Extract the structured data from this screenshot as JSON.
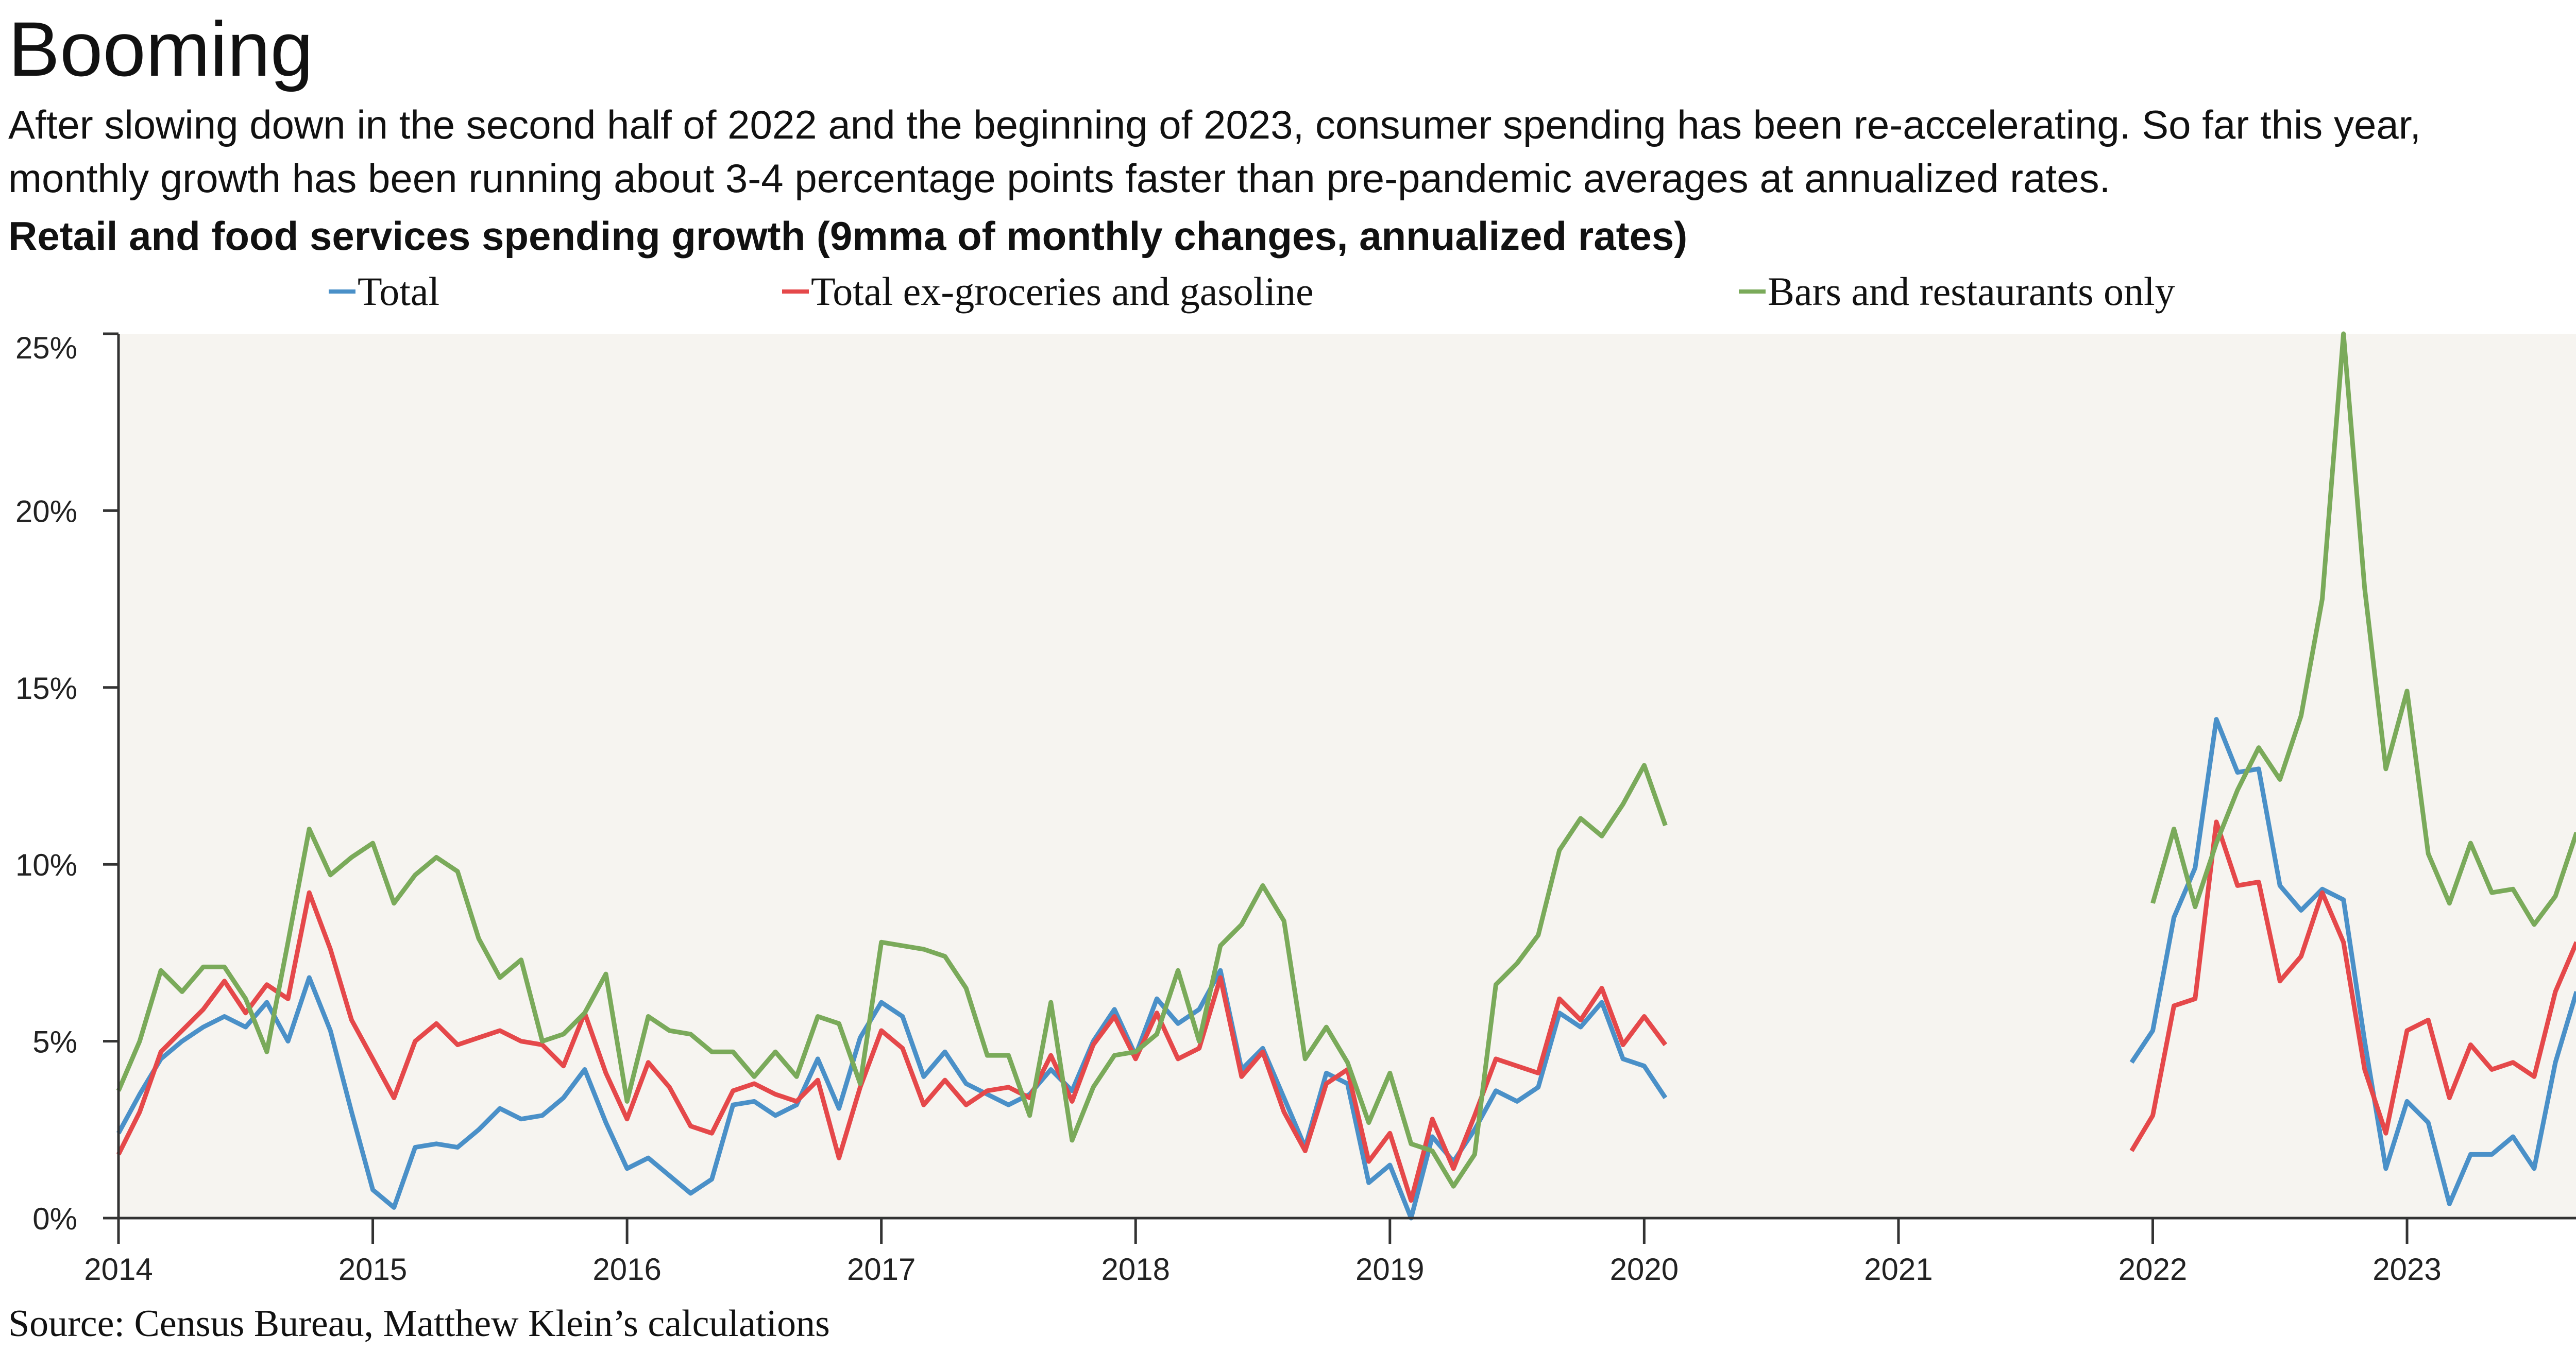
{
  "title": "Booming",
  "subtitle": "After slowing down in the second half of 2022 and the beginning of 2023, consumer spending has been re-accelerating. So far this year, monthly growth has been running about 3-4 percentage points faster than pre-pandemic averages at annualized rates.",
  "source": "Source: Census Bureau, Matthew Klein’s calculations",
  "chart_data": {
    "type": "line",
    "title": "Retail and food services spending growth (9mma of monthly changes, annualized rates)",
    "xlabel": "",
    "ylabel": "",
    "ylim": [
      0,
      25
    ],
    "yticks": [
      "0%",
      "5%",
      "10%",
      "15%",
      "20%",
      "25%"
    ],
    "xticks": [
      "2014",
      "2015",
      "2016",
      "2017",
      "2018",
      "2019",
      "2020",
      "2021",
      "2022",
      "2023"
    ],
    "grid": false,
    "legend": "top",
    "background": "#f6f4f0",
    "series": [
      {
        "name": "Total",
        "color": "#4a90c8",
        "segments": [
          {
            "start": "2014-01",
            "values": [
              2.4,
              3.5,
              4.5,
              5.0,
              5.4,
              5.7,
              5.4,
              6.1,
              5.0,
              6.8,
              5.3,
              3.0,
              0.8,
              0.3,
              2.0,
              2.1,
              2.0,
              2.5,
              3.1,
              2.8,
              2.9,
              3.4,
              4.2,
              2.7,
              1.4,
              1.7,
              1.2,
              0.7,
              1.1,
              3.2,
              3.3,
              2.9,
              3.2,
              4.5,
              3.1,
              5.1,
              6.1,
              5.7,
              4.0,
              4.7,
              3.8,
              3.5,
              3.2,
              3.5,
              4.2,
              3.6,
              5.0,
              5.9,
              4.6,
              6.2,
              5.5,
              5.9,
              7.0,
              4.2,
              4.8,
              3.4,
              2.0,
              4.1,
              3.8,
              1.0,
              1.5,
              0.0,
              2.3,
              1.6,
              2.5,
              3.6,
              3.3,
              3.7,
              5.8,
              5.4,
              6.1,
              4.5,
              4.3,
              3.4
            ]
          },
          {
            "start": "2021-12",
            "values": [
              4.4,
              5.3,
              8.5,
              9.9,
              14.1,
              12.6,
              12.7,
              9.4,
              8.7,
              9.3,
              9.0,
              5.0,
              1.4,
              3.3,
              2.7,
              0.4,
              1.8,
              1.8,
              2.3,
              1.4,
              4.4,
              6.4
            ]
          }
        ]
      },
      {
        "name": "Total ex-groceries and gasoline",
        "color": "#e5484a",
        "segments": [
          {
            "start": "2014-01",
            "values": [
              1.8,
              3.0,
              4.7,
              5.3,
              5.9,
              6.7,
              5.8,
              6.6,
              6.2,
              9.2,
              7.6,
              5.6,
              4.5,
              3.4,
              5.0,
              5.5,
              4.9,
              5.1,
              5.3,
              5.0,
              4.9,
              4.3,
              5.8,
              4.1,
              2.8,
              4.4,
              3.7,
              2.6,
              2.4,
              3.6,
              3.8,
              3.5,
              3.3,
              3.9,
              1.7,
              3.7,
              5.3,
              4.8,
              3.2,
              3.9,
              3.2,
              3.6,
              3.7,
              3.4,
              4.6,
              3.3,
              4.9,
              5.7,
              4.5,
              5.8,
              4.5,
              4.8,
              6.8,
              4.0,
              4.7,
              3.0,
              1.9,
              3.8,
              4.2,
              1.6,
              2.4,
              0.5,
              2.8,
              1.4,
              2.9,
              4.5,
              4.3,
              4.1,
              6.2,
              5.6,
              6.5,
              4.9,
              5.7,
              4.9
            ]
          },
          {
            "start": "2021-12",
            "values": [
              1.9,
              2.9,
              6.0,
              6.2,
              11.2,
              9.4,
              9.5,
              6.7,
              7.4,
              9.2,
              7.8,
              4.2,
              2.4,
              5.3,
              5.6,
              3.4,
              4.9,
              4.2,
              4.4,
              4.0,
              6.4,
              7.8
            ]
          }
        ]
      },
      {
        "name": "Bars and restaurants only",
        "color": "#7aaa5a",
        "segments": [
          {
            "start": "2014-01",
            "values": [
              3.6,
              5.0,
              7.0,
              6.4,
              7.1,
              7.1,
              6.2,
              4.7,
              7.8,
              11.0,
              9.7,
              10.2,
              10.6,
              8.9,
              9.7,
              10.2,
              9.8,
              7.9,
              6.8,
              7.3,
              5.0,
              5.2,
              5.8,
              6.9,
              3.3,
              5.7,
              5.3,
              5.2,
              4.7,
              4.7,
              4.0,
              4.7,
              4.0,
              5.7,
              5.5,
              3.8,
              7.8,
              7.7,
              7.6,
              7.4,
              6.5,
              4.6,
              4.6,
              2.9,
              6.1,
              2.2,
              3.7,
              4.6,
              4.7,
              5.2,
              7.0,
              5.0,
              7.7,
              8.3,
              9.4,
              8.4,
              4.5,
              5.4,
              4.4,
              2.7,
              4.1,
              2.1,
              1.9,
              0.9,
              1.8,
              6.6,
              7.2,
              8.0,
              10.4,
              11.3,
              10.8,
              11.7,
              12.8,
              11.1
            ]
          },
          {
            "start": "2022-01",
            "values": [
              8.9,
              11.0,
              8.8,
              10.6,
              12.1,
              13.3,
              12.4,
              14.2,
              17.5,
              25.0,
              17.8,
              12.7,
              14.9,
              10.3,
              8.9,
              10.6,
              9.2,
              9.3,
              8.3,
              9.1,
              10.9
            ]
          }
        ]
      }
    ]
  }
}
